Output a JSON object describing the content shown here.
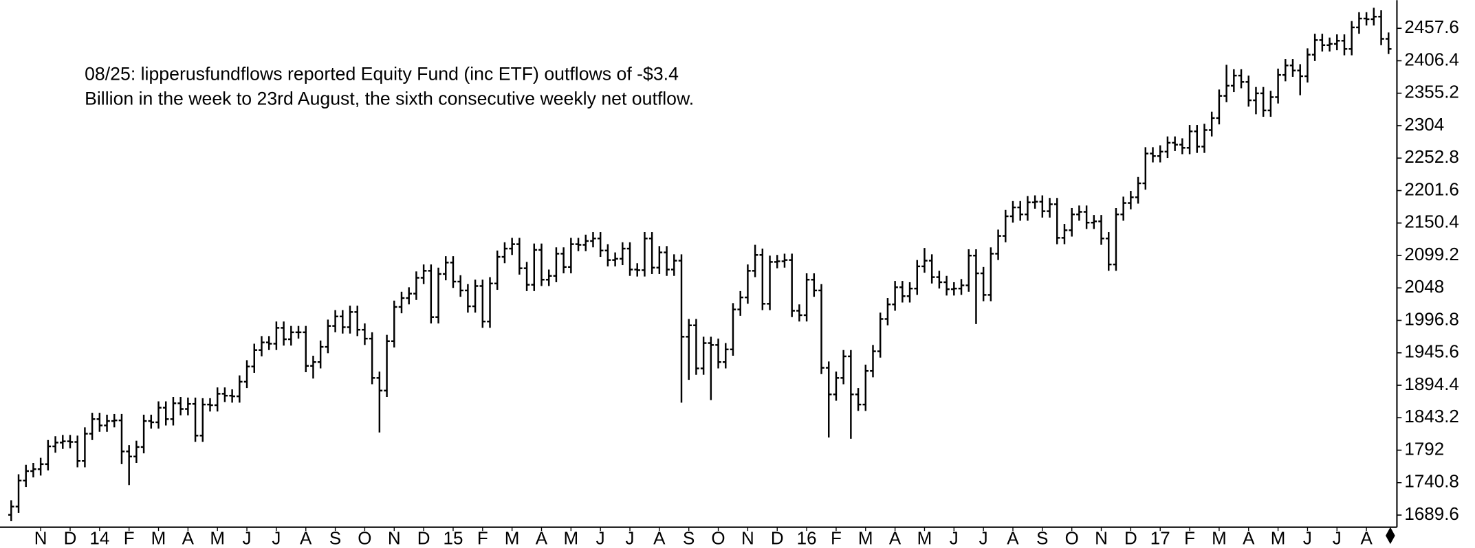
{
  "chart_data": {
    "type": "ohlc",
    "annotation": [
      "08/25: lipperusfundflows reported Equity Fund (inc ETF) outflows of -$3.4",
      "Billion in the week to 23rd August, the sixth consecutive weekly net outflow."
    ],
    "color": "#000000",
    "ylim": [
      1672,
      2502
    ],
    "yticks": [
      1689.6,
      1740.8,
      1792,
      1843.2,
      1894.4,
      1945.6,
      1996.8,
      2048,
      2099.2,
      2150.4,
      2201.6,
      2252.8,
      2304,
      2355.2,
      2406.4,
      2457.6
    ],
    "grid": false,
    "categories": [
      null,
      null,
      null,
      null,
      "N",
      null,
      null,
      null,
      "D",
      null,
      null,
      null,
      "14",
      null,
      null,
      null,
      "F",
      null,
      null,
      null,
      "M",
      null,
      null,
      null,
      "A",
      null,
      null,
      null,
      "M",
      null,
      null,
      null,
      "J",
      null,
      null,
      null,
      "J",
      null,
      null,
      null,
      "A",
      null,
      null,
      null,
      "S",
      null,
      null,
      null,
      "O",
      null,
      null,
      null,
      "N",
      null,
      null,
      null,
      "D",
      null,
      null,
      null,
      "15",
      null,
      null,
      null,
      "F",
      null,
      null,
      null,
      "M",
      null,
      null,
      null,
      "A",
      null,
      null,
      null,
      "M",
      null,
      null,
      null,
      "J",
      null,
      null,
      null,
      "J",
      null,
      null,
      null,
      "A",
      null,
      null,
      null,
      "S",
      null,
      null,
      null,
      "O",
      null,
      null,
      null,
      "N",
      null,
      null,
      null,
      "D",
      null,
      null,
      null,
      "16",
      null,
      null,
      null,
      "F",
      null,
      null,
      null,
      "M",
      null,
      null,
      null,
      "A",
      null,
      null,
      null,
      "M",
      null,
      null,
      null,
      "J",
      null,
      null,
      null,
      "J",
      null,
      null,
      null,
      "A",
      null,
      null,
      null,
      "S",
      null,
      null,
      null,
      "O",
      null,
      null,
      null,
      "N",
      null,
      null,
      null,
      "D",
      null,
      null,
      null,
      "17",
      null,
      null,
      null,
      "F",
      null,
      null,
      null,
      "M",
      null,
      null,
      null,
      "A",
      null,
      null,
      null,
      "M",
      null,
      null,
      null,
      "J",
      null,
      null,
      null,
      "J",
      null,
      null,
      null,
      "A",
      null,
      null,
      null
    ],
    "open": [
      1690,
      1703,
      1744,
      1759,
      1762,
      1770,
      1798,
      1804,
      1806,
      1805,
      1775,
      1818,
      1841,
      1831,
      1838,
      1839,
      1790,
      1782,
      1797,
      1838,
      1836,
      1859,
      1841,
      1866,
      1857,
      1865,
      1815,
      1864,
      1863,
      1881,
      1878,
      1877,
      1900,
      1924,
      1950,
      1962,
      1960,
      1985,
      1967,
      1978,
      1978,
      1925,
      1931,
      1955,
      1988,
      2003,
      1986,
      2010,
      1982,
      1968,
      1906,
      1886,
      1964,
      2018,
      2032,
      2039,
      2064,
      2075,
      2002,
      2070,
      2088,
      2058,
      2044,
      2019,
      2051,
      1995,
      2055,
      2097,
      2110,
      2117,
      2079,
      2053,
      2108,
      2061,
      2067,
      2102,
      2081,
      2117,
      2116,
      2122,
      2126,
      2107,
      2092,
      2094,
      2110,
      2077,
      2076,
      2126,
      2080,
      2104,
      2077,
      2091,
      1971,
      1989,
      1921,
      1961,
      1958,
      1931,
      1951,
      2014,
      2033,
      2075,
      2100,
      2023,
      2089,
      2090,
      2092,
      2012,
      2005,
      2061,
      2044,
      1922,
      1880,
      1906,
      1940,
      1880,
      1864,
      1917,
      1948,
      1999,
      2022,
      2049,
      2035,
      2047,
      2082,
      2091,
      2065,
      2057,
      2046,
      2047,
      2052,
      2099,
      2071,
      2037,
      2102,
      2130,
      2161,
      2175,
      2164,
      2183,
      2184,
      2169,
      2180,
      2127,
      2139,
      2164,
      2168,
      2151,
      2153,
      2126,
      2085,
      2164,
      2182,
      2191,
      2213,
      2260,
      2256,
      2263,
      2277,
      2274,
      2269,
      2295,
      2271,
      2297,
      2316,
      2351,
      2367,
      2383,
      2373,
      2344,
      2355,
      2328,
      2349,
      2384,
      2399,
      2391,
      2382,
      2416,
      2439,
      2431,
      2433,
      2438,
      2425,
      2459,
      2473,
      2472,
      2476,
      2441
    ],
    "high": [
      1713,
      1754,
      1769,
      1772,
      1780,
      1808,
      1814,
      1816,
      1816,
      1815,
      1828,
      1851,
      1851,
      1848,
      1849,
      1849,
      1800,
      1807,
      1848,
      1848,
      1869,
      1869,
      1876,
      1876,
      1875,
      1875,
      1874,
      1874,
      1891,
      1891,
      1888,
      1910,
      1934,
      1960,
      1972,
      1972,
      1995,
      1995,
      1988,
      1988,
      1988,
      1941,
      1965,
      1998,
      2013,
      2013,
      2020,
      2020,
      1992,
      1978,
      1916,
      1974,
      2028,
      2042,
      2049,
      2074,
      2085,
      2085,
      2080,
      2098,
      2098,
      2068,
      2054,
      2061,
      2061,
      2065,
      2107,
      2120,
      2127,
      2127,
      2089,
      2118,
      2118,
      2077,
      2112,
      2112,
      2127,
      2127,
      2132,
      2136,
      2136,
      2117,
      2104,
      2120,
      2120,
      2087,
      2136,
      2136,
      2114,
      2114,
      2101,
      2101,
      1999,
      1999,
      1971,
      1971,
      1968,
      1961,
      2024,
      2043,
      2085,
      2116,
      2110,
      2099,
      2100,
      2102,
      2102,
      2022,
      2071,
      2071,
      2054,
      1932,
      1916,
      1950,
      1950,
      1890,
      1927,
      1958,
      2009,
      2032,
      2059,
      2059,
      2057,
      2092,
      2111,
      2101,
      2075,
      2067,
      2057,
      2062,
      2109,
      2109,
      2081,
      2112,
      2140,
      2171,
      2185,
      2185,
      2193,
      2194,
      2194,
      2190,
      2190,
      2149,
      2174,
      2178,
      2178,
      2163,
      2163,
      2136,
      2174,
      2192,
      2201,
      2223,
      2270,
      2270,
      2273,
      2287,
      2287,
      2284,
      2305,
      2305,
      2307,
      2326,
      2361,
      2400,
      2393,
      2393,
      2383,
      2365,
      2365,
      2359,
      2394,
      2409,
      2409,
      2401,
      2426,
      2449,
      2449,
      2443,
      2448,
      2448,
      2469,
      2483,
      2483,
      2490,
      2486,
      2451
    ],
    "low": [
      1680,
      1693,
      1734,
      1749,
      1752,
      1760,
      1788,
      1794,
      1795,
      1765,
      1765,
      1808,
      1821,
      1821,
      1828,
      1770,
      1737,
      1772,
      1787,
      1826,
      1826,
      1831,
      1831,
      1847,
      1847,
      1805,
      1805,
      1853,
      1853,
      1868,
      1867,
      1867,
      1890,
      1914,
      1940,
      1950,
      1950,
      1957,
      1957,
      1968,
      1915,
      1905,
      1921,
      1945,
      1978,
      1976,
      1976,
      1972,
      1958,
      1896,
      1820,
      1876,
      1954,
      2008,
      2022,
      2029,
      2054,
      1992,
      1992,
      2060,
      2048,
      2034,
      2009,
      2009,
      1985,
      1985,
      2045,
      2087,
      2100,
      2069,
      2043,
      2043,
      2051,
      2051,
      2057,
      2071,
      2071,
      2106,
      2106,
      2112,
      2097,
      2082,
      2082,
      2084,
      2067,
      2066,
      2066,
      2070,
      2070,
      2067,
      2067,
      1867,
      1903,
      1911,
      1911,
      1871,
      1921,
      1921,
      1941,
      2004,
      2023,
      2065,
      2013,
      2013,
      2079,
      2080,
      2002,
      1995,
      1995,
      2034,
      1912,
      1812,
      1870,
      1896,
      1810,
      1854,
      1854,
      1907,
      1938,
      1989,
      2012,
      2025,
      2025,
      2037,
      2072,
      2055,
      2047,
      2036,
      2036,
      2037,
      2042,
      1991,
      2027,
      2027,
      2092,
      2120,
      2151,
      2154,
      2154,
      2173,
      2159,
      2159,
      2117,
      2117,
      2129,
      2154,
      2141,
      2141,
      2116,
      2075,
      2075,
      2154,
      2172,
      2181,
      2203,
      2246,
      2246,
      2253,
      2264,
      2259,
      2259,
      2261,
      2261,
      2287,
      2306,
      2341,
      2357,
      2363,
      2334,
      2322,
      2318,
      2318,
      2339,
      2374,
      2381,
      2352,
      2372,
      2406,
      2421,
      2421,
      2423,
      2415,
      2415,
      2449,
      2462,
      2462,
      2431,
      2417
    ],
    "close": [
      1703,
      1744,
      1759,
      1762,
      1770,
      1798,
      1804,
      1806,
      1805,
      1775,
      1818,
      1841,
      1831,
      1838,
      1839,
      1790,
      1782,
      1797,
      1838,
      1836,
      1859,
      1841,
      1866,
      1857,
      1865,
      1815,
      1864,
      1863,
      1881,
      1878,
      1877,
      1900,
      1924,
      1950,
      1962,
      1960,
      1985,
      1967,
      1978,
      1978,
      1925,
      1931,
      1955,
      1988,
      2003,
      1986,
      2010,
      1982,
      1968,
      1906,
      1886,
      1964,
      2018,
      2032,
      2039,
      2064,
      2075,
      2002,
      2070,
      2088,
      2058,
      2044,
      2019,
      2051,
      1995,
      2055,
      2097,
      2110,
      2117,
      2079,
      2053,
      2108,
      2061,
      2067,
      2102,
      2081,
      2117,
      2116,
      2122,
      2126,
      2107,
      2092,
      2094,
      2110,
      2077,
      2076,
      2126,
      2080,
      2104,
      2077,
      2091,
      1971,
      1989,
      1921,
      1961,
      1958,
      1931,
      1951,
      2014,
      2033,
      2075,
      2100,
      2023,
      2089,
      2090,
      2092,
      2012,
      2005,
      2061,
      2044,
      1922,
      1880,
      1906,
      1940,
      1880,
      1864,
      1917,
      1948,
      1999,
      2022,
      2049,
      2035,
      2047,
      2082,
      2091,
      2065,
      2057,
      2046,
      2047,
      2052,
      2099,
      2071,
      2037,
      2102,
      2130,
      2161,
      2175,
      2164,
      2183,
      2184,
      2169,
      2180,
      2127,
      2139,
      2164,
      2168,
      2151,
      2153,
      2126,
      2085,
      2164,
      2182,
      2191,
      2213,
      2260,
      2256,
      2263,
      2277,
      2274,
      2269,
      2295,
      2271,
      2297,
      2316,
      2351,
      2367,
      2383,
      2373,
      2344,
      2355,
      2328,
      2349,
      2384,
      2399,
      2391,
      2382,
      2416,
      2439,
      2431,
      2433,
      2438,
      2425,
      2459,
      2473,
      2472,
      2476,
      2441,
      2425
    ]
  }
}
